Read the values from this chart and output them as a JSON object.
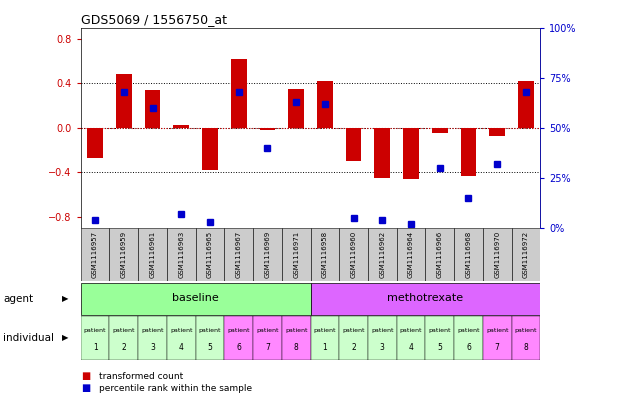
{
  "title": "GDS5069 / 1556750_at",
  "samples": [
    "GSM1116957",
    "GSM1116959",
    "GSM1116961",
    "GSM1116963",
    "GSM1116965",
    "GSM1116967",
    "GSM1116969",
    "GSM1116971",
    "GSM1116958",
    "GSM1116960",
    "GSM1116962",
    "GSM1116964",
    "GSM1116966",
    "GSM1116968",
    "GSM1116970",
    "GSM1116972"
  ],
  "bar_values": [
    -0.27,
    0.48,
    0.34,
    0.02,
    -0.38,
    0.62,
    -0.02,
    0.35,
    0.42,
    -0.3,
    -0.45,
    -0.46,
    -0.05,
    -0.43,
    -0.07,
    0.42
  ],
  "dot_values": [
    4,
    68,
    60,
    7,
    3,
    68,
    40,
    63,
    62,
    5,
    4,
    2,
    30,
    15,
    32,
    68
  ],
  "bar_color": "#cc0000",
  "dot_color": "#0000cc",
  "ylim": [
    -0.9,
    0.9
  ],
  "yticks": [
    -0.8,
    -0.4,
    0.0,
    0.4,
    0.8
  ],
  "y2ticks": [
    0,
    25,
    50,
    75,
    100
  ],
  "y2labels": [
    "0%",
    "25%",
    "50%",
    "75%",
    "100%"
  ],
  "agent_groups": [
    {
      "label": "baseline",
      "start": 0,
      "end": 7,
      "color": "#99ff99"
    },
    {
      "label": "methotrexate",
      "start": 8,
      "end": 15,
      "color": "#dd66ff"
    }
  ],
  "patient_colors": [
    "#ccffcc",
    "#ccffcc",
    "#ccffcc",
    "#ccffcc",
    "#ccffcc",
    "#ff88ff",
    "#ff88ff",
    "#ff88ff",
    "#ccffcc",
    "#ccffcc",
    "#ccffcc",
    "#ccffcc",
    "#ccffcc",
    "#ccffcc",
    "#ff88ff",
    "#ff88ff"
  ],
  "patient_nums": [
    1,
    2,
    3,
    4,
    5,
    6,
    7,
    8,
    1,
    2,
    3,
    4,
    5,
    6,
    7,
    8
  ],
  "sample_cell_color": "#cccccc",
  "legend_bar_label": "transformed count",
  "legend_dot_label": "percentile rank within the sample",
  "agent_label": "agent",
  "individual_label": "individual"
}
